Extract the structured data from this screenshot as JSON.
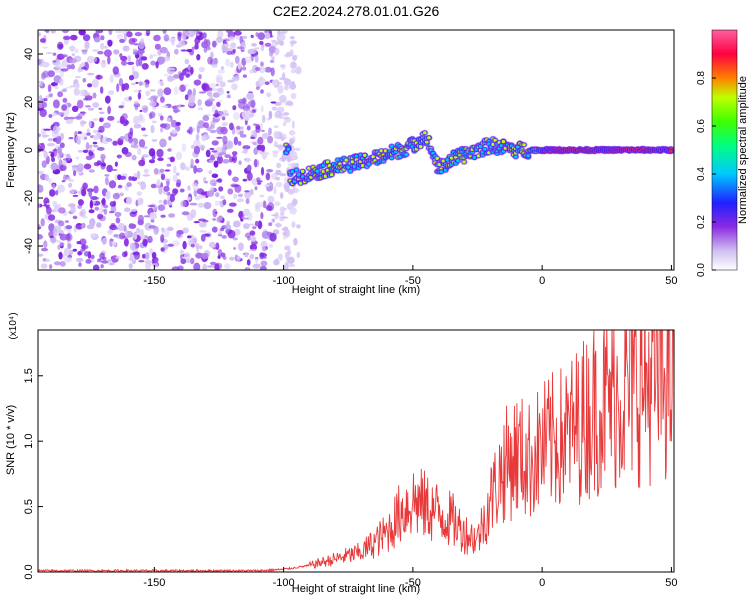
{
  "title": "C2E2.2024.278.01.01.G26",
  "chart_data": [
    {
      "type": "heatmap",
      "name": "spectrogram",
      "xlabel": "Height of straight line (km)",
      "ylabel": "Frequency (Hz)",
      "xlim": [
        -195,
        51
      ],
      "ylim": [
        -50,
        50
      ],
      "xticks": [
        -150,
        -100,
        -50,
        0,
        50
      ],
      "yticks": [
        -40,
        -20,
        0,
        20,
        40
      ],
      "colorbar": {
        "label": "Normalized spectral amplitude",
        "range": [
          0,
          1
        ],
        "ticks": [
          0.0,
          0.2,
          0.4,
          0.6,
          0.8
        ],
        "colormap": [
          "#ffffff",
          "#c8b4f0",
          "#8a2be2",
          "#2020ff",
          "#00c8ff",
          "#00ff80",
          "#c0ff00",
          "#ff8000",
          "#ff0040",
          "#ff60a0"
        ]
      },
      "noise_region": {
        "x": [
          -195,
          -100
        ],
        "y": [
          -50,
          50
        ],
        "amplitude": 0.2
      },
      "signal_track": [
        {
          "x": -98,
          "y": -12
        },
        {
          "x": -90,
          "y": -10
        },
        {
          "x": -80,
          "y": -7
        },
        {
          "x": -70,
          "y": -5
        },
        {
          "x": -60,
          "y": -2
        },
        {
          "x": -50,
          "y": 2
        },
        {
          "x": -45,
          "y": 6
        },
        {
          "x": -40,
          "y": -8
        },
        {
          "x": -35,
          "y": -4
        },
        {
          "x": -30,
          "y": -2
        },
        {
          "x": -20,
          "y": 2
        },
        {
          "x": -10,
          "y": 0
        },
        {
          "x": 0,
          "y": 0
        },
        {
          "x": 25,
          "y": 0
        },
        {
          "x": 50,
          "y": 0
        }
      ]
    },
    {
      "type": "line",
      "name": "snr",
      "xlabel": "Height of straight line (km)",
      "ylabel": "SNR (10 * v/v)",
      "multiplier": "(x10⁴)",
      "xlim": [
        -195,
        51
      ],
      "ylim": [
        0,
        1.85
      ],
      "xticks": [
        -150,
        -100,
        -50,
        0,
        50
      ],
      "yticks": [
        "0.0",
        "0.5",
        "1.0",
        "1.5"
      ],
      "color": "#e8393a",
      "x": [
        -195,
        -150,
        -110,
        -100,
        -90,
        -80,
        -70,
        -60,
        -55,
        -50,
        -45,
        -40,
        -35,
        -30,
        -25,
        -20,
        -15,
        -10,
        -5,
        0,
        10,
        20,
        30,
        40,
        50
      ],
      "y": [
        0.01,
        0.01,
        0.01,
        0.02,
        0.05,
        0.1,
        0.15,
        0.3,
        0.45,
        0.55,
        0.5,
        0.45,
        0.4,
        0.3,
        0.25,
        0.55,
        0.8,
        0.9,
        0.85,
        0.95,
        1.05,
        1.25,
        1.35,
        1.45,
        1.5
      ]
    }
  ]
}
